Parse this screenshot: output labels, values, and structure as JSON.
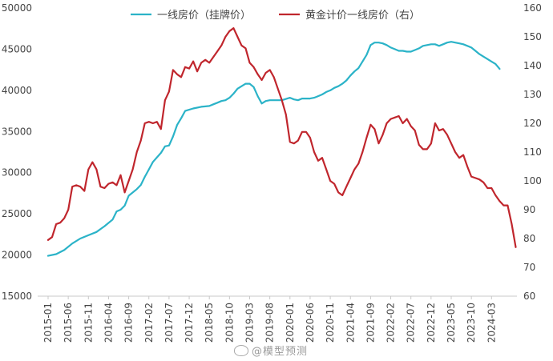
{
  "chart_data": {
    "type": "line",
    "title": "",
    "legend_position": "top",
    "grid": false,
    "x_labels": [
      "2015-01",
      "2015-06",
      "2015-11",
      "2016-04",
      "2016-09",
      "2017-02",
      "2017-07",
      "2017-12",
      "2018-05",
      "2018-10",
      "2019-03",
      "2019-08",
      "2020-01",
      "2020-06",
      "2020-11",
      "2021-04",
      "2021-09",
      "2022-02",
      "2022-07",
      "2022-12",
      "2023-05",
      "2023-10",
      "2024-03"
    ],
    "y_left": {
      "min": 15000,
      "max": 50000,
      "ticks": [
        "15000",
        "20000",
        "25000",
        "30000",
        "35000",
        "40000",
        "45000",
        "50000"
      ]
    },
    "y_right": {
      "min": 60,
      "max": 160,
      "ticks": [
        "60",
        "70",
        "80",
        "90",
        "100",
        "110",
        "120",
        "130",
        "140",
        "150",
        "160"
      ]
    },
    "series": [
      {
        "name": "一线房价（挂牌价）",
        "axis": "left",
        "color": "#2bb3c8",
        "points": [
          [
            0,
            19900
          ],
          [
            2,
            20100
          ],
          [
            4,
            20600
          ],
          [
            6,
            21400
          ],
          [
            8,
            22000
          ],
          [
            10,
            22400
          ],
          [
            12,
            22800
          ],
          [
            14,
            23500
          ],
          [
            16,
            24300
          ],
          [
            17,
            25300
          ],
          [
            18,
            25500
          ],
          [
            19,
            26000
          ],
          [
            20,
            27200
          ],
          [
            22,
            28000
          ],
          [
            23,
            28500
          ],
          [
            24,
            29500
          ],
          [
            25,
            30400
          ],
          [
            26,
            31300
          ],
          [
            28,
            32400
          ],
          [
            29,
            33200
          ],
          [
            30,
            33300
          ],
          [
            31,
            34400
          ],
          [
            32,
            35800
          ],
          [
            33,
            36600
          ],
          [
            34,
            37500
          ],
          [
            36,
            37800
          ],
          [
            38,
            38000
          ],
          [
            40,
            38100
          ],
          [
            41,
            38300
          ],
          [
            42,
            38500
          ],
          [
            43,
            38700
          ],
          [
            44,
            38800
          ],
          [
            45,
            39100
          ],
          [
            46,
            39600
          ],
          [
            47,
            40200
          ],
          [
            48,
            40500
          ],
          [
            49,
            40800
          ],
          [
            50,
            40800
          ],
          [
            51,
            40400
          ],
          [
            52,
            39300
          ],
          [
            53,
            38400
          ],
          [
            54,
            38700
          ],
          [
            55,
            38800
          ],
          [
            57,
            38800
          ],
          [
            58,
            38800
          ],
          [
            60,
            39100
          ],
          [
            61,
            38900
          ],
          [
            62,
            38800
          ],
          [
            63,
            39000
          ],
          [
            64,
            39000
          ],
          [
            65,
            39000
          ],
          [
            66,
            39100
          ],
          [
            67,
            39300
          ],
          [
            68,
            39500
          ],
          [
            69,
            39800
          ],
          [
            70,
            40000
          ],
          [
            71,
            40300
          ],
          [
            72,
            40500
          ],
          [
            73,
            40800
          ],
          [
            74,
            41200
          ],
          [
            75,
            41800
          ],
          [
            76,
            42300
          ],
          [
            77,
            42700
          ],
          [
            78,
            43500
          ],
          [
            79,
            44300
          ],
          [
            80,
            45500
          ],
          [
            81,
            45800
          ],
          [
            82,
            45800
          ],
          [
            83,
            45700
          ],
          [
            84,
            45500
          ],
          [
            85,
            45200
          ],
          [
            86,
            45000
          ],
          [
            87,
            44800
          ],
          [
            88,
            44800
          ],
          [
            89,
            44700
          ],
          [
            90,
            44700
          ],
          [
            91,
            44900
          ],
          [
            92,
            45100
          ],
          [
            93,
            45400
          ],
          [
            94,
            45500
          ],
          [
            95,
            45600
          ],
          [
            96,
            45600
          ],
          [
            97,
            45400
          ],
          [
            98,
            45600
          ],
          [
            99,
            45800
          ],
          [
            100,
            45900
          ],
          [
            101,
            45800
          ],
          [
            102,
            45700
          ],
          [
            103,
            45600
          ],
          [
            104,
            45400
          ],
          [
            105,
            45200
          ],
          [
            106,
            44800
          ],
          [
            107,
            44400
          ],
          [
            108,
            44100
          ],
          [
            109,
            43800
          ],
          [
            110,
            43500
          ],
          [
            111,
            43200
          ],
          [
            112,
            42600
          ]
        ]
      },
      {
        "name": "黄金计价一线房价（右）",
        "axis": "right",
        "color": "#c0262d",
        "points": [
          [
            0,
            79.5
          ],
          [
            1,
            80.5
          ],
          [
            2,
            85
          ],
          [
            3,
            85.5
          ],
          [
            4,
            87
          ],
          [
            5,
            90
          ],
          [
            6,
            98
          ],
          [
            7,
            98.5
          ],
          [
            8,
            98
          ],
          [
            9,
            96.5
          ],
          [
            10,
            104
          ],
          [
            11,
            106.5
          ],
          [
            12,
            104
          ],
          [
            13,
            98
          ],
          [
            14,
            97.5
          ],
          [
            15,
            99
          ],
          [
            16,
            99.5
          ],
          [
            17,
            98.5
          ],
          [
            18,
            102
          ],
          [
            19,
            96
          ],
          [
            20,
            100
          ],
          [
            21,
            104
          ],
          [
            22,
            110
          ],
          [
            23,
            114
          ],
          [
            24,
            120
          ],
          [
            25,
            120.5
          ],
          [
            26,
            120
          ],
          [
            27,
            120.5
          ],
          [
            28,
            118
          ],
          [
            29,
            128
          ],
          [
            30,
            131
          ],
          [
            31,
            138.5
          ],
          [
            32,
            137
          ],
          [
            33,
            136
          ],
          [
            34,
            139.5
          ],
          [
            35,
            139
          ],
          [
            36,
            141.5
          ],
          [
            37,
            138
          ],
          [
            38,
            141
          ],
          [
            39,
            142
          ],
          [
            40,
            141
          ],
          [
            41,
            143
          ],
          [
            42,
            145
          ],
          [
            43,
            147
          ],
          [
            44,
            150
          ],
          [
            45,
            152
          ],
          [
            46,
            153
          ],
          [
            47,
            150
          ],
          [
            48,
            147
          ],
          [
            49,
            146
          ],
          [
            50,
            141
          ],
          [
            51,
            139.5
          ],
          [
            52,
            137
          ],
          [
            53,
            135
          ],
          [
            54,
            137.5
          ],
          [
            55,
            138.5
          ],
          [
            56,
            136
          ],
          [
            57,
            132
          ],
          [
            58,
            128
          ],
          [
            59,
            123
          ],
          [
            60,
            113.5
          ],
          [
            61,
            113
          ],
          [
            62,
            114
          ],
          [
            63,
            117
          ],
          [
            64,
            117
          ],
          [
            65,
            115
          ],
          [
            66,
            110
          ],
          [
            67,
            107
          ],
          [
            68,
            108
          ],
          [
            69,
            104
          ],
          [
            70,
            100
          ],
          [
            71,
            99
          ],
          [
            72,
            96
          ],
          [
            73,
            95
          ],
          [
            74,
            98
          ],
          [
            75,
            101
          ],
          [
            76,
            104
          ],
          [
            77,
            106
          ],
          [
            78,
            110
          ],
          [
            79,
            115
          ],
          [
            80,
            119.5
          ],
          [
            81,
            118
          ],
          [
            82,
            113
          ],
          [
            83,
            116
          ],
          [
            84,
            120
          ],
          [
            85,
            121.5
          ],
          [
            86,
            122
          ],
          [
            87,
            122.5
          ],
          [
            88,
            120
          ],
          [
            89,
            121.5
          ],
          [
            90,
            119
          ],
          [
            91,
            117.5
          ],
          [
            92,
            112.5
          ],
          [
            93,
            111
          ],
          [
            94,
            111
          ],
          [
            95,
            113
          ],
          [
            96,
            120
          ],
          [
            97,
            117.5
          ],
          [
            98,
            118
          ],
          [
            99,
            116
          ],
          [
            100,
            113
          ],
          [
            101,
            110
          ],
          [
            102,
            108
          ],
          [
            103,
            109
          ],
          [
            104,
            105
          ],
          [
            105,
            101.5
          ],
          [
            106,
            101
          ],
          [
            107,
            100.5
          ],
          [
            108,
            99.5
          ],
          [
            109,
            97.5
          ],
          [
            110,
            97.5
          ],
          [
            111,
            95
          ],
          [
            112,
            93
          ],
          [
            113,
            91.5
          ],
          [
            114,
            91.5
          ],
          [
            115,
            85
          ],
          [
            116,
            77
          ]
        ]
      }
    ]
  },
  "watermark": {
    "text": "@模型预测"
  }
}
